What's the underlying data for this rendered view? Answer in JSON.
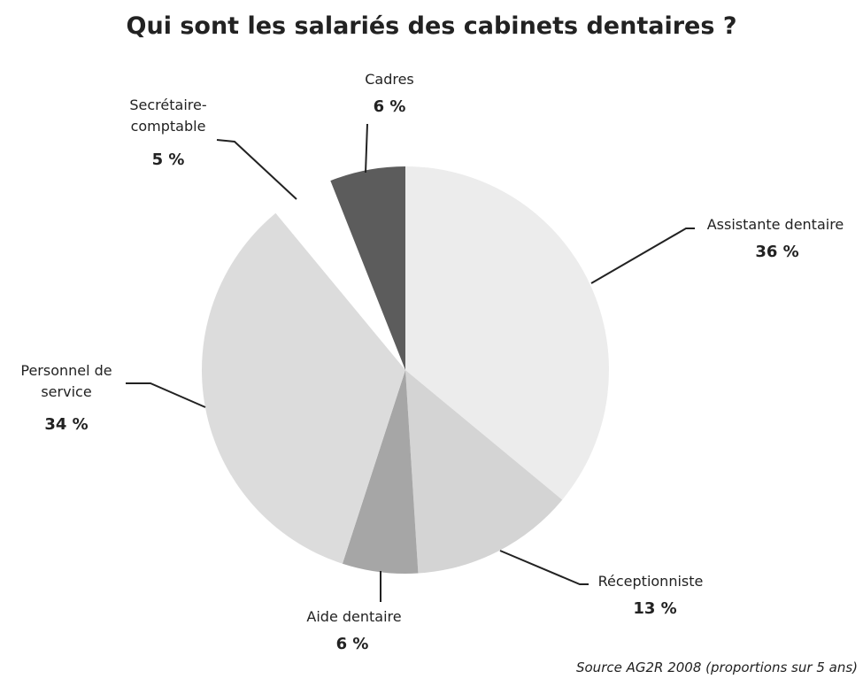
{
  "chart_data": {
    "type": "pie",
    "title": "Qui sont les salariés des cabinets dentaires ?",
    "categories": [
      "Assistante dentaire",
      "Réceptionniste",
      "Aide dentaire",
      "Personnel de service",
      "Secrétaire-comptable",
      "Cadres"
    ],
    "values": [
      36,
      13,
      6,
      34,
      5,
      6
    ],
    "value_labels": [
      "36 %",
      "13 %",
      "6 %",
      "34 %",
      "5 %",
      "6 %"
    ],
    "colors": [
      "#ececec",
      "#d4d4d4",
      "#a6a6a6",
      "#dcdcdc",
      "#ffffff",
      "#5c5c5c"
    ],
    "exploded": [
      4
    ],
    "source": "Source AG2R 2008 (proportions sur 5 ans)"
  }
}
